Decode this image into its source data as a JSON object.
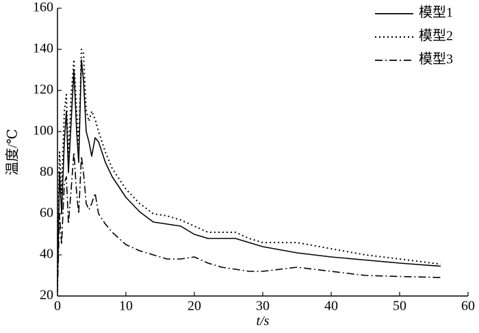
{
  "chart_data": {
    "type": "line",
    "xlabel": "t/s",
    "ylabel": "温度/℃",
    "x": [
      0,
      0.3,
      0.6,
      1,
      1.3,
      1.6,
      2,
      2.4,
      2.8,
      3.1,
      3.5,
      3.8,
      4.2,
      4.6,
      5,
      5.5,
      6,
      7,
      8,
      10,
      12,
      14,
      16,
      18,
      20,
      22,
      24,
      26,
      28,
      30,
      35,
      40,
      45,
      50,
      56
    ],
    "series": [
      {
        "name": "模型1",
        "color": "#000000",
        "style": "solid",
        "values": [
          25,
          80,
          60,
          95,
          110,
          80,
          105,
          130,
          100,
          85,
          135,
          125,
          100,
          95,
          88,
          97,
          95,
          85,
          78,
          68,
          61,
          56,
          55,
          54,
          50,
          48,
          48,
          48,
          46,
          44,
          41,
          39,
          37.5,
          36,
          34.5
        ]
      },
      {
        "name": "模型2",
        "color": "#000000",
        "style": "dotted",
        "values": [
          30,
          90,
          70,
          110,
          118,
          88,
          118,
          135,
          110,
          92,
          140,
          138,
          110,
          105,
          110,
          106,
          100,
          90,
          82,
          72,
          65,
          60,
          59,
          57,
          54,
          51,
          51,
          51,
          48,
          46,
          46,
          43,
          40,
          38,
          35.5
        ]
      },
      {
        "name": "模型3",
        "color": "#000000",
        "style": "dashdot",
        "values": [
          22,
          60,
          45,
          75,
          78,
          55,
          72,
          90,
          70,
          60,
          88,
          80,
          65,
          62,
          65,
          70,
          60,
          55,
          51,
          45,
          42,
          40,
          38,
          38,
          39,
          36,
          34,
          33,
          32,
          32,
          34,
          32,
          30,
          29.5,
          29
        ]
      }
    ],
    "xlim": [
      0,
      60
    ],
    "xticks": [
      0,
      10,
      20,
      30,
      40,
      50,
      60
    ],
    "ylim": [
      20,
      160
    ],
    "yticks": [
      20,
      40,
      60,
      80,
      100,
      120,
      140,
      160
    ],
    "grid": false,
    "legend": "upper right"
  }
}
